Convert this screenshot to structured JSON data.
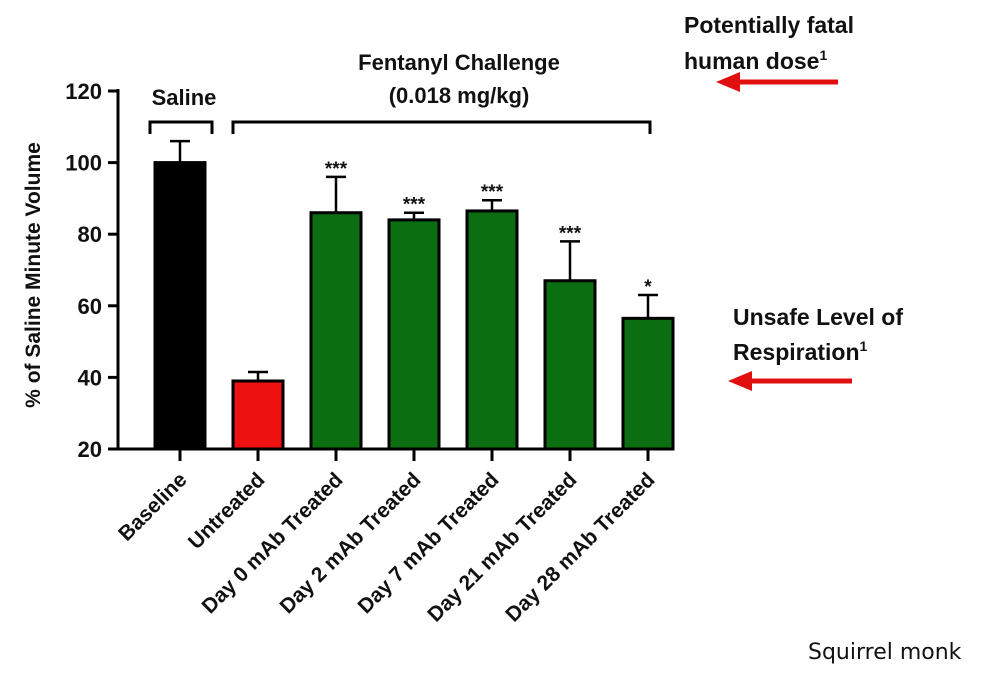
{
  "chart_data": {
    "type": "bar",
    "title": "",
    "xlabel": "",
    "ylabel": "% of Saline Minute Volume",
    "ylim": [
      20,
      120
    ],
    "yticks": [
      20,
      40,
      60,
      80,
      100,
      120
    ],
    "categories": [
      "Baseline",
      "Untreated",
      "Day 0 mAb Treated",
      "Day 2 mAb Treated",
      "Day 7 mAb Treated",
      "Day 21 mAb Treated",
      "Day 28 mAb Treated"
    ],
    "values": [
      100,
      39,
      86,
      84,
      86.5,
      67,
      56.5
    ],
    "error_upper": [
      6,
      2.5,
      10,
      2,
      3,
      11,
      6.5
    ],
    "significance": [
      "",
      "",
      "***",
      "***",
      "***",
      "***",
      "*"
    ],
    "bar_colors": [
      "#000000",
      "#ee1111",
      "#0b6e10",
      "#0b6e10",
      "#0b6e10",
      "#0b6e10",
      "#0b6e10"
    ],
    "grid": false,
    "brackets": [
      {
        "label": "Saline",
        "from": 0,
        "to": 0
      },
      {
        "label_lines": [
          "Fentanyl Challenge",
          "(0.018 mg/kg)"
        ],
        "from": 1,
        "to": 6
      }
    ],
    "annotations": [
      {
        "lines": [
          "Potentially fatal",
          "human dose"
        ],
        "superscript": "1",
        "arrow_color": "#e01010"
      },
      {
        "lines": [
          "Unsafe Level of",
          "Respiration"
        ],
        "superscript": "1",
        "arrow_color": "#e01010"
      }
    ]
  },
  "footer_text": "Squirrel monk"
}
